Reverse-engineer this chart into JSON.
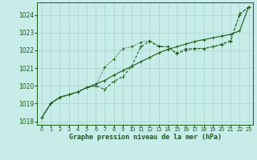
{
  "xlabel": "Graphe pression niveau de la mer (hPa)",
  "bg_color": "#c8ece8",
  "grid_color": "#a8d4cc",
  "line_color": "#1a5c1a",
  "ylim": [
    1017.8,
    1024.7
  ],
  "xlim": [
    -0.5,
    23.5
  ],
  "yticks": [
    1018,
    1019,
    1020,
    1021,
    1022,
    1023,
    1024
  ],
  "xticks": [
    0,
    1,
    2,
    3,
    4,
    5,
    6,
    7,
    8,
    9,
    10,
    11,
    12,
    13,
    14,
    15,
    16,
    17,
    18,
    19,
    20,
    21,
    22,
    23
  ],
  "series_straight": [
    1018.2,
    1019.0,
    1019.35,
    1019.5,
    1019.65,
    1019.9,
    1020.1,
    1020.3,
    1020.6,
    1020.85,
    1021.1,
    1021.35,
    1021.6,
    1021.85,
    1022.05,
    1022.2,
    1022.35,
    1022.5,
    1022.6,
    1022.7,
    1022.8,
    1022.9,
    1023.1,
    1024.45
  ],
  "series_wavy": [
    1018.2,
    1019.0,
    1019.35,
    1019.5,
    1019.65,
    1019.9,
    1020.0,
    1021.05,
    1021.5,
    1022.1,
    1022.2,
    1022.45,
    1022.55,
    1022.25,
    1022.2,
    1021.85,
    1022.1,
    1022.1,
    1022.1,
    1022.2,
    1022.3,
    1022.5,
    1024.0,
    1024.45
  ],
  "series_mid": [
    1018.2,
    1019.0,
    1019.35,
    1019.5,
    1019.65,
    1019.9,
    1020.0,
    1019.8,
    1020.25,
    1020.5,
    1021.1,
    1022.2,
    1022.5,
    1022.2,
    1022.2,
    1021.8,
    1022.0,
    1022.1,
    1022.1,
    1022.2,
    1022.35,
    1022.55,
    1024.05,
    1024.45
  ]
}
